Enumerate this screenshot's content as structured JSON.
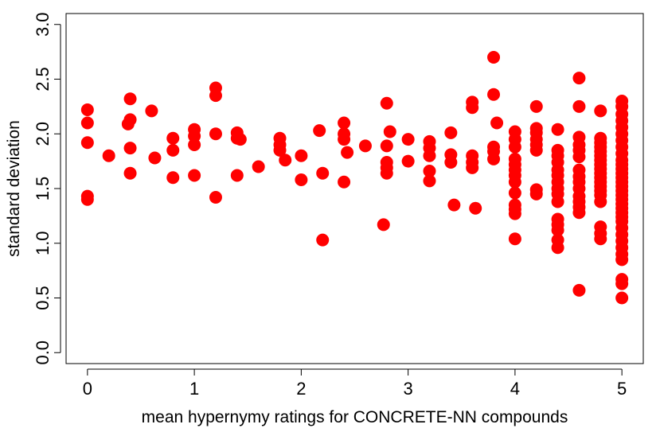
{
  "chart_data": {
    "type": "scatter",
    "xlabel": "mean hypernymy ratings for CONCRETE-NN compounds",
    "ylabel": "standard deviation",
    "xlim": [
      -0.2,
      5.2
    ],
    "ylim": [
      -0.1,
      3.1
    ],
    "xticks": [
      "0",
      "1",
      "2",
      "3",
      "4",
      "5"
    ],
    "yticks": [
      "0.0",
      "0.5",
      "1.0",
      "1.5",
      "2.0",
      "2.5",
      "3.0"
    ],
    "grid": false,
    "legend": "none",
    "marker_color": "#ff0000",
    "points": [
      [
        0,
        2.22
      ],
      [
        0,
        2.1
      ],
      [
        0,
        1.92
      ],
      [
        0,
        1.43
      ],
      [
        0,
        1.4
      ],
      [
        0.2,
        1.8
      ],
      [
        0.4,
        2.32
      ],
      [
        0.4,
        2.13
      ],
      [
        0.38,
        2.09
      ],
      [
        0.4,
        1.87
      ],
      [
        0.4,
        1.64
      ],
      [
        0.6,
        2.21
      ],
      [
        0.63,
        1.78
      ],
      [
        0.8,
        1.96
      ],
      [
        0.8,
        1.85
      ],
      [
        0.8,
        1.6
      ],
      [
        1,
        2.04
      ],
      [
        1,
        1.98
      ],
      [
        1,
        1.9
      ],
      [
        1,
        1.62
      ],
      [
        1.2,
        2.42
      ],
      [
        1.2,
        2.35
      ],
      [
        1.2,
        2.0
      ],
      [
        1.2,
        1.42
      ],
      [
        1.4,
        2.01
      ],
      [
        1.4,
        1.96
      ],
      [
        1.43,
        1.95
      ],
      [
        1.4,
        1.62
      ],
      [
        1.6,
        1.7
      ],
      [
        1.8,
        1.96
      ],
      [
        1.8,
        1.9
      ],
      [
        1.8,
        1.85
      ],
      [
        1.85,
        1.76
      ],
      [
        2,
        1.8
      ],
      [
        2,
        1.58
      ],
      [
        2.17,
        2.03
      ],
      [
        2.2,
        1.64
      ],
      [
        2.2,
        1.03
      ],
      [
        2.4,
        2.1
      ],
      [
        2.4,
        2.0
      ],
      [
        2.4,
        1.95
      ],
      [
        2.43,
        1.83
      ],
      [
        2.4,
        1.56
      ],
      [
        2.6,
        1.89
      ],
      [
        2.8,
        2.28
      ],
      [
        2.83,
        2.02
      ],
      [
        2.8,
        1.89
      ],
      [
        2.8,
        1.74
      ],
      [
        2.8,
        1.69
      ],
      [
        2.8,
        1.64
      ],
      [
        2.77,
        1.17
      ],
      [
        3,
        1.95
      ],
      [
        3,
        1.75
      ],
      [
        3.2,
        1.93
      ],
      [
        3.2,
        1.87
      ],
      [
        3.2,
        1.8
      ],
      [
        3.2,
        1.66
      ],
      [
        3.2,
        1.57
      ],
      [
        3.4,
        2.01
      ],
      [
        3.4,
        1.81
      ],
      [
        3.4,
        1.74
      ],
      [
        3.43,
        1.35
      ],
      [
        3.6,
        2.29
      ],
      [
        3.6,
        2.24
      ],
      [
        3.6,
        1.8
      ],
      [
        3.6,
        1.74
      ],
      [
        3.6,
        1.69
      ],
      [
        3.63,
        1.32
      ],
      [
        3.8,
        2.7
      ],
      [
        3.8,
        2.36
      ],
      [
        3.83,
        2.1
      ],
      [
        3.8,
        1.88
      ],
      [
        3.8,
        1.84
      ],
      [
        3.8,
        1.77
      ],
      [
        4,
        2.02
      ],
      [
        4,
        1.95
      ],
      [
        4,
        1.88
      ],
      [
        4,
        1.77
      ],
      [
        4,
        1.72
      ],
      [
        4,
        1.67
      ],
      [
        4,
        1.62
      ],
      [
        4,
        1.56
      ],
      [
        4,
        1.46
      ],
      [
        4,
        1.35
      ],
      [
        4,
        1.31
      ],
      [
        4,
        1.27
      ],
      [
        4,
        1.04
      ],
      [
        4.2,
        2.25
      ],
      [
        4.2,
        2.05
      ],
      [
        4.2,
        2.01
      ],
      [
        4.2,
        1.95
      ],
      [
        4.2,
        1.9
      ],
      [
        4.2,
        1.85
      ],
      [
        4.2,
        1.49
      ],
      [
        4.2,
        1.45
      ],
      [
        4.4,
        2.04
      ],
      [
        4.4,
        1.85
      ],
      [
        4.4,
        1.8
      ],
      [
        4.4,
        1.74
      ],
      [
        4.4,
        1.67
      ],
      [
        4.4,
        1.62
      ],
      [
        4.4,
        1.56
      ],
      [
        4.4,
        1.5
      ],
      [
        4.4,
        1.45
      ],
      [
        4.4,
        1.38
      ],
      [
        4.4,
        1.22
      ],
      [
        4.4,
        1.17
      ],
      [
        4.4,
        1.12
      ],
      [
        4.4,
        1.03
      ],
      [
        4.4,
        0.96
      ],
      [
        4.6,
        2.51
      ],
      [
        4.6,
        2.25
      ],
      [
        4.6,
        1.97
      ],
      [
        4.6,
        1.9
      ],
      [
        4.6,
        1.85
      ],
      [
        4.6,
        1.79
      ],
      [
        4.6,
        1.67
      ],
      [
        4.6,
        1.61
      ],
      [
        4.6,
        1.56
      ],
      [
        4.6,
        1.5
      ],
      [
        4.6,
        1.43
      ],
      [
        4.6,
        1.38
      ],
      [
        4.6,
        1.33
      ],
      [
        4.6,
        1.28
      ],
      [
        4.6,
        0.57
      ],
      [
        4.8,
        2.21
      ],
      [
        4.8,
        1.96
      ],
      [
        4.8,
        1.92
      ],
      [
        4.8,
        1.88
      ],
      [
        4.8,
        1.84
      ],
      [
        4.8,
        1.8
      ],
      [
        4.8,
        1.76
      ],
      [
        4.8,
        1.72
      ],
      [
        4.8,
        1.68
      ],
      [
        4.8,
        1.64
      ],
      [
        4.8,
        1.6
      ],
      [
        4.8,
        1.56
      ],
      [
        4.8,
        1.52
      ],
      [
        4.8,
        1.48
      ],
      [
        4.8,
        1.44
      ],
      [
        4.8,
        1.38
      ],
      [
        4.8,
        1.15
      ],
      [
        4.8,
        1.09
      ],
      [
        4.8,
        1.04
      ],
      [
        5,
        2.3
      ],
      [
        5,
        2.25
      ],
      [
        5,
        2.18
      ],
      [
        5,
        2.12
      ],
      [
        5,
        2.06
      ],
      [
        5,
        2.0
      ],
      [
        5,
        1.94
      ],
      [
        5,
        1.88
      ],
      [
        5,
        1.82
      ],
      [
        5,
        1.76
      ],
      [
        5,
        1.72
      ],
      [
        5,
        1.68
      ],
      [
        5,
        1.64
      ],
      [
        5,
        1.6
      ],
      [
        5,
        1.56
      ],
      [
        5,
        1.52
      ],
      [
        5,
        1.48
      ],
      [
        5,
        1.44
      ],
      [
        5,
        1.4
      ],
      [
        5,
        1.36
      ],
      [
        5,
        1.32
      ],
      [
        5,
        1.28
      ],
      [
        5,
        1.24
      ],
      [
        5,
        1.2
      ],
      [
        5,
        1.14
      ],
      [
        5,
        1.08
      ],
      [
        5,
        1.02
      ],
      [
        5,
        0.96
      ],
      [
        5,
        0.9
      ],
      [
        5,
        0.85
      ],
      [
        5,
        0.67
      ],
      [
        5,
        0.63
      ],
      [
        5,
        0.5
      ]
    ]
  }
}
